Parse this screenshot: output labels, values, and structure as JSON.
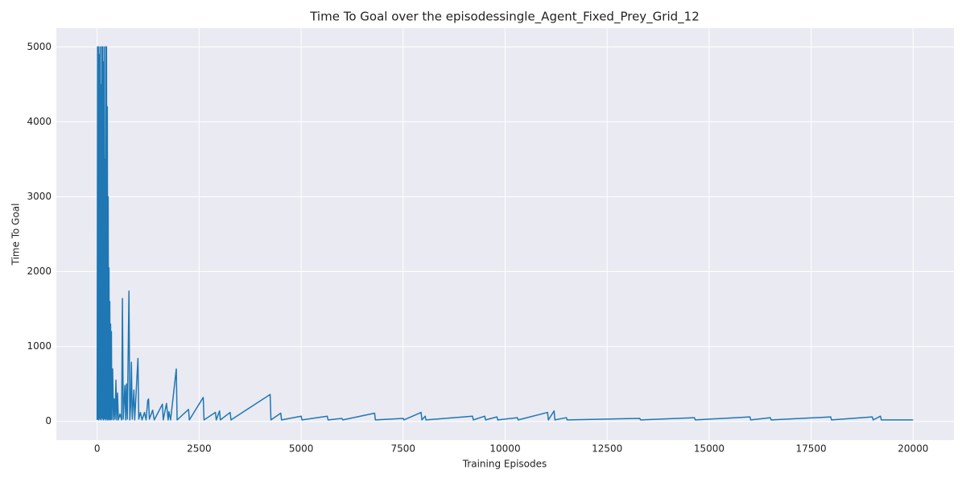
{
  "chart_data": {
    "type": "line",
    "title": "Time To Goal over the episodessingle_Agent_Fixed_Prey_Grid_12",
    "x_label": "Training Episodes",
    "y_label": "Time To Goal",
    "color": "#1f77b4",
    "grid": true,
    "xlim": [
      -1000,
      21000
    ],
    "ylim": [
      -250,
      5250
    ],
    "xticks": [
      0,
      2500,
      5000,
      7500,
      10000,
      12500,
      15000,
      17500,
      20000
    ],
    "yticks": [
      0,
      1000,
      2000,
      3000,
      4000,
      5000
    ],
    "x": [
      0,
      10,
      20,
      30,
      40,
      50,
      60,
      70,
      80,
      90,
      100,
      110,
      120,
      130,
      140,
      150,
      160,
      170,
      180,
      190,
      200,
      210,
      220,
      230,
      240,
      250,
      260,
      270,
      280,
      290,
      300,
      310,
      320,
      330,
      340,
      350,
      360,
      380,
      400,
      420,
      440,
      460,
      480,
      500,
      520,
      560,
      600,
      620,
      640,
      680,
      700,
      720,
      740,
      780,
      800,
      820,
      840,
      860,
      900,
      920,
      1000,
      1020,
      1060,
      1100,
      1160,
      1200,
      1240,
      1260,
      1280,
      1360,
      1400,
      1600,
      1620,
      1700,
      1740,
      1760,
      1800,
      1940,
      1960,
      2240,
      2260,
      2600,
      2620,
      2900,
      2920,
      3000,
      3020,
      3260,
      3280,
      4240,
      4260,
      4500,
      4520,
      5000,
      5020,
      5640,
      5660,
      6000,
      6020,
      6800,
      6820,
      7500,
      7520,
      7940,
      7960,
      8040,
      8060,
      9200,
      9220,
      9500,
      9520,
      9800,
      9820,
      10300,
      10320,
      11040,
      11060,
      11200,
      11220,
      11500,
      11520,
      13300,
      13320,
      14640,
      14660,
      16000,
      16020,
      16500,
      16520,
      17980,
      18000,
      19000,
      19020,
      19200,
      19220,
      20000
    ],
    "values": [
      20,
      5000,
      30,
      5000,
      20,
      4900,
      40,
      5000,
      30,
      4500,
      20,
      5000,
      50,
      5000,
      30,
      4800,
      20,
      5000,
      40,
      3500,
      30,
      5000,
      20,
      5000,
      40,
      4200,
      20,
      3000,
      30,
      2050,
      20,
      1600,
      30,
      1300,
      20,
      1200,
      30,
      700,
      20,
      300,
      30,
      550,
      20,
      380,
      20,
      100,
      20,
      1640,
      30,
      480,
      20,
      500,
      30,
      1740,
      20,
      200,
      790,
      30,
      420,
      20,
      840,
      30,
      120,
      20,
      120,
      20,
      280,
      300,
      30,
      150,
      20,
      230,
      20,
      240,
      20,
      130,
      20,
      700,
      20,
      160,
      20,
      320,
      20,
      120,
      20,
      140,
      20,
      120,
      20,
      360,
      20,
      110,
      20,
      70,
      20,
      70,
      20,
      40,
      20,
      110,
      20,
      40,
      20,
      120,
      20,
      70,
      20,
      70,
      20,
      70,
      20,
      60,
      20,
      50,
      20,
      120,
      20,
      140,
      20,
      50,
      20,
      40,
      20,
      50,
      20,
      60,
      20,
      50,
      20,
      60,
      20,
      60,
      20,
      70,
      20,
      20
    ]
  }
}
